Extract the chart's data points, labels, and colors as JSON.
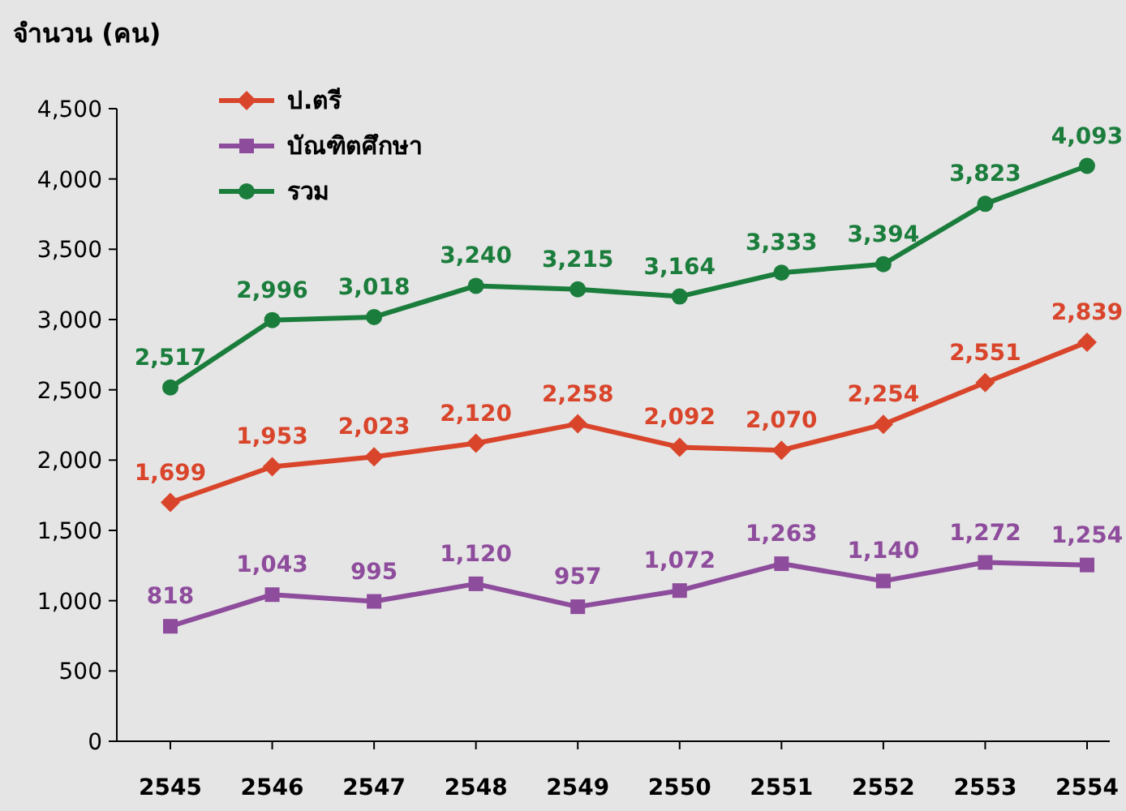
{
  "chart_data": {
    "type": "line",
    "ylabel": "จำนวน (คน)",
    "categories": [
      "2545",
      "2546",
      "2547",
      "2548",
      "2549",
      "2550",
      "2551",
      "2552",
      "2553",
      "2554"
    ],
    "series": [
      {
        "name": "ป.ตรี",
        "color": "#d9452b",
        "marker": "diamond",
        "values": [
          1699,
          1953,
          2023,
          2120,
          2258,
          2092,
          2070,
          2254,
          2551,
          2839
        ],
        "value_labels": [
          "1,699",
          "1,953",
          "2,023",
          "2,120",
          "2,258",
          "2,092",
          "2,070",
          "2,254",
          "2,551",
          "2,839"
        ]
      },
      {
        "name": "บัณฑิตศึกษา",
        "color": "#8e4c9c",
        "marker": "square",
        "values": [
          818,
          1043,
          995,
          1120,
          957,
          1072,
          1263,
          1140,
          1272,
          1254
        ],
        "value_labels": [
          "818",
          "1,043",
          "995",
          "1,120",
          "957",
          "1,072",
          "1,263",
          "1,140",
          "1,272",
          "1,254"
        ]
      },
      {
        "name": "รวม",
        "color": "#1b7d3c",
        "marker": "circle",
        "values": [
          2517,
          2996,
          3018,
          3240,
          3215,
          3164,
          3333,
          3394,
          3823,
          4093
        ],
        "value_labels": [
          "2,517",
          "2,996",
          "3,018",
          "3,240",
          "3,215",
          "3,164",
          "3,333",
          "3,394",
          "3,823",
          "4,093"
        ]
      }
    ],
    "ylim": [
      0,
      4500
    ],
    "yticks": [
      0,
      500,
      {
        "value": 1000,
        "label": "1,000"
      },
      {
        "value": 1500,
        "label": "1,500"
      },
      {
        "value": 2000,
        "label": "2,000"
      },
      {
        "value": 2500,
        "label": "2,500"
      },
      {
        "value": 3000,
        "label": "3,000"
      },
      {
        "value": 3500,
        "label": "3,500"
      },
      {
        "value": 4000,
        "label": "4,000"
      },
      {
        "value": 4500,
        "label": "4,500"
      }
    ],
    "grid": false,
    "legend": "top left",
    "line_style": "solid"
  }
}
